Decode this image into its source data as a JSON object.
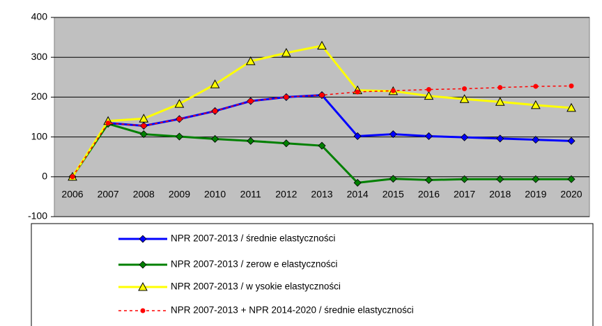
{
  "chart_data": {
    "type": "line",
    "categories": [
      "2006",
      "2007",
      "2008",
      "2009",
      "2010",
      "2011",
      "2012",
      "2013",
      "2014",
      "2015",
      "2016",
      "2017",
      "2018",
      "2019",
      "2020"
    ],
    "series": [
      {
        "name": "NPR 2007-2013 / średnie elastyczności",
        "color": "#0000ff",
        "marker": "diamond",
        "dash": false,
        "values": [
          0,
          135,
          128,
          145,
          165,
          190,
          200,
          205,
          102,
          107,
          102,
          99,
          96,
          93,
          90
        ]
      },
      {
        "name": "NPR 2007-2013 / zerow e elastyczności",
        "color": "#008000",
        "marker": "diamond",
        "dash": false,
        "values": [
          0,
          133,
          107,
          101,
          95,
          90,
          84,
          78,
          -15,
          -5,
          -8,
          -6,
          -6,
          -6,
          -6
        ]
      },
      {
        "name": "NPR 2007-2013 / w ysokie elastyczności",
        "color": "#ffff00",
        "marker": "triangle",
        "dash": false,
        "values": [
          0,
          140,
          146,
          183,
          232,
          290,
          311,
          329,
          217,
          215,
          203,
          195,
          188,
          180,
          173
        ]
      },
      {
        "name": "NPR 2007-2013 + NPR 2014-2020 / średnie elastyczności",
        "color": "#ff0000",
        "marker": "circle",
        "dash": true,
        "values": [
          0,
          135,
          128,
          145,
          165,
          190,
          200,
          205,
          213,
          216,
          219,
          221,
          224,
          227,
          228
        ]
      }
    ],
    "ylim": [
      -100,
      400
    ],
    "yticks": [
      -100,
      0,
      100,
      200,
      300,
      400
    ],
    "grid": true
  }
}
